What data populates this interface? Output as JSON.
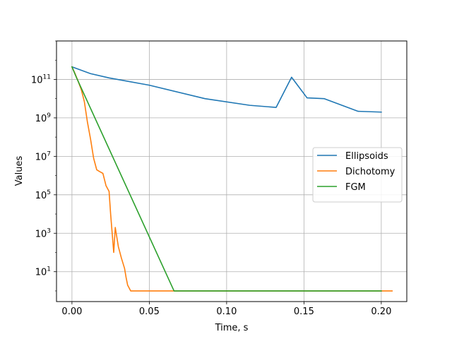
{
  "chart_data": {
    "type": "line",
    "xlabel": "Time, s",
    "ylabel": "Values",
    "yscale": "log",
    "xlim": [
      -0.01,
      0.2165
    ],
    "ylim": [
      0.28,
      10000000000000.0
    ],
    "grid": true,
    "legend_position": "center-right",
    "x_ticks": [
      0.0,
      0.05,
      0.1,
      0.15,
      0.2
    ],
    "x_tick_labels": [
      "0.00",
      "0.05",
      "0.10",
      "0.15",
      "0.20"
    ],
    "y_ticks": [
      10,
      1000,
      100000,
      10000000,
      1000000000,
      100000000000
    ],
    "y_tick_labels": [
      {
        "base": "10",
        "exp": "1"
      },
      {
        "base": "10",
        "exp": "3"
      },
      {
        "base": "10",
        "exp": "5"
      },
      {
        "base": "10",
        "exp": "7"
      },
      {
        "base": "10",
        "exp": "9"
      },
      {
        "base": "10",
        "exp": "11"
      }
    ],
    "series": [
      {
        "name": "Ellipsoids",
        "color": "#1f77b4",
        "x": [
          0.0,
          0.012,
          0.024,
          0.05,
          0.086,
          0.115,
          0.132,
          0.142,
          0.152,
          0.163,
          0.185,
          0.2
        ],
        "y": [
          450000000000.0,
          200000000000.0,
          120000000000.0,
          50000000000.0,
          10000000000.0,
          4500000000.0,
          3500000000.0,
          130000000000.0,
          11000000000.0,
          10000000000.0,
          2200000000.0,
          2000000000.0
        ]
      },
      {
        "name": "Dichotomy",
        "color": "#ff7f0e",
        "x": [
          0.0,
          0.002,
          0.004,
          0.006,
          0.008,
          0.01,
          0.012,
          0.014,
          0.016,
          0.018,
          0.02,
          0.022,
          0.024,
          0.025,
          0.026,
          0.027,
          0.028,
          0.03,
          0.032,
          0.034,
          0.035,
          0.036,
          0.038,
          0.04,
          0.06,
          0.1,
          0.15,
          0.2,
          0.207
        ],
        "y": [
          450000000000.0,
          200000000000.0,
          80000000000.0,
          30000000000.0,
          7000000000.0,
          600000000.0,
          80000000.0,
          8000000.0,
          2000000.0,
          1600000.0,
          1300000.0,
          300000.0,
          150000.0,
          10000.0,
          1000.0,
          100.0,
          2000.0,
          200.0,
          50,
          15,
          5,
          2,
          1,
          1,
          1,
          1,
          1,
          1,
          1
        ]
      },
      {
        "name": "FGM",
        "color": "#2ca02c",
        "x": [
          0.0,
          0.003,
          0.066,
          0.1,
          0.15,
          0.2
        ],
        "y": [
          450000000000.0,
          120000000000.0,
          1,
          1,
          1,
          1
        ]
      }
    ]
  }
}
